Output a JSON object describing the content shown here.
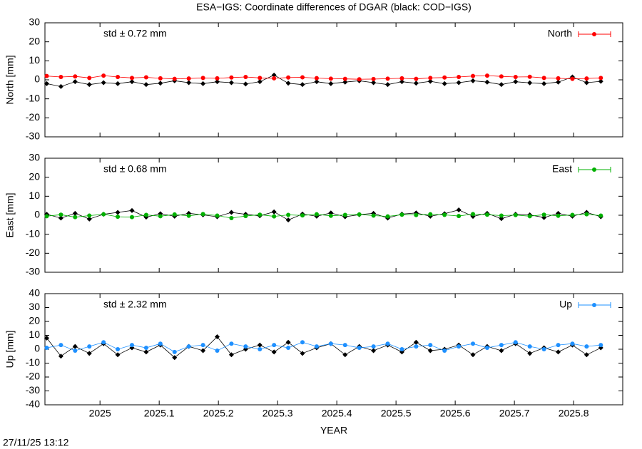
{
  "title": "ESA−IGS: Coordinate differences of DGAR (black: COD−IGS)",
  "timestamp": "27/11/25 13:12",
  "chart_data": [
    {
      "type": "line",
      "ylabel": "North [mm]",
      "annotation": "std ± 0.72 mm",
      "legend": "upper right",
      "xlim": [
        2024.907,
        2025.883
      ],
      "xticks": [
        2025,
        2025.1,
        2025.2,
        2025.3,
        2025.4,
        2025.5,
        2025.6,
        2025.7,
        2025.8
      ],
      "ylim": [
        -30,
        30
      ],
      "yticks": [
        -30,
        -20,
        -10,
        0,
        10,
        20,
        30
      ],
      "x": [
        2024.91,
        2024.934,
        2024.958,
        2024.982,
        2025.006,
        2025.03,
        2025.054,
        2025.078,
        2025.102,
        2025.126,
        2025.15,
        2025.174,
        2025.198,
        2025.222,
        2025.246,
        2025.27,
        2025.294,
        2025.318,
        2025.342,
        2025.366,
        2025.39,
        2025.414,
        2025.438,
        2025.462,
        2025.486,
        2025.51,
        2025.534,
        2025.558,
        2025.582,
        2025.606,
        2025.63,
        2025.654,
        2025.678,
        2025.702,
        2025.726,
        2025.75,
        2025.774,
        2025.798,
        2025.822,
        2025.846
      ],
      "series": [
        {
          "color": "#000000",
          "values": [
            -2,
            -3.5,
            -1,
            -2.5,
            -1.5,
            -2,
            -1,
            -2.5,
            -1.8,
            -0.5,
            -1.5,
            -2,
            -1,
            -1.5,
            -2.2,
            -1,
            2.5,
            -1.8,
            -2.5,
            -1,
            -2,
            -1.2,
            -0.5,
            -1.5,
            -2.5,
            -1,
            -1.8,
            -0.8,
            -2,
            -1.5,
            -0.5,
            -1.2,
            -2.5,
            -1,
            -1.6,
            -2,
            -1.2,
            1.5,
            -1.5,
            -0.8
          ]
        },
        {
          "name": "North",
          "color": "#ff0000",
          "values": [
            2,
            1.5,
            1.8,
            1,
            2.2,
            1.5,
            1,
            1.3,
            0.8,
            0.5,
            0.7,
            1,
            0.8,
            1.2,
            1.5,
            1,
            0.8,
            1.2,
            1.3,
            0.9,
            0.6,
            0.5,
            0.3,
            0.4,
            0.6,
            0.8,
            0.5,
            1,
            1.2,
            1.5,
            2,
            2.2,
            1.8,
            1.5,
            1.6,
            1,
            0.8,
            0.5,
            0.7,
            1
          ]
        }
      ]
    },
    {
      "type": "line",
      "ylabel": "East [mm]",
      "annotation": "std ± 0.68 mm",
      "legend": "upper right",
      "xlim": [
        2024.907,
        2025.883
      ],
      "xticks": [
        2025,
        2025.1,
        2025.2,
        2025.3,
        2025.4,
        2025.5,
        2025.6,
        2025.7,
        2025.8
      ],
      "ylim": [
        -30,
        30
      ],
      "yticks": [
        -30,
        -20,
        -10,
        0,
        10,
        20,
        30
      ],
      "x": [
        2024.91,
        2024.934,
        2024.958,
        2024.982,
        2025.006,
        2025.03,
        2025.054,
        2025.078,
        2025.102,
        2025.126,
        2025.15,
        2025.174,
        2025.198,
        2025.222,
        2025.246,
        2025.27,
        2025.294,
        2025.318,
        2025.342,
        2025.366,
        2025.39,
        2025.414,
        2025.438,
        2025.462,
        2025.486,
        2025.51,
        2025.534,
        2025.558,
        2025.582,
        2025.606,
        2025.63,
        2025.654,
        2025.678,
        2025.702,
        2025.726,
        2025.75,
        2025.774,
        2025.798,
        2025.822,
        2025.846
      ],
      "series": [
        {
          "color": "#000000",
          "values": [
            0.5,
            -1.5,
            1,
            -2,
            0.5,
            1.5,
            2.5,
            -1,
            0.8,
            -0.5,
            1,
            0.2,
            -0.8,
            1.5,
            0.5,
            -0.3,
            1.8,
            -2.5,
            0.6,
            -0.5,
            1.2,
            -0.8,
            0.3,
            1,
            -1.5,
            0.6,
            1.2,
            -0.5,
            0.8,
            2.8,
            -0.6,
            1,
            -1.8,
            0.5,
            0.2,
            -1.2,
            1,
            -0.5,
            1.5,
            -0.8
          ]
        },
        {
          "name": "East",
          "color": "#00b000",
          "values": [
            -0.5,
            0.3,
            -1,
            -0.2,
            0.5,
            -0.8,
            -1,
            0.2,
            -0.5,
            0.4,
            -0.3,
            0.6,
            -0.2,
            -1.5,
            -0.4,
            0.3,
            -0.6,
            0.2,
            -0.1,
            0.5,
            -0.3,
            0.2,
            0.4,
            -0.2,
            -0.6,
            0.3,
            0.1,
            0.5,
            0.2,
            -0.4,
            0.6,
            0.3,
            -0.2,
            0.1,
            -0.5,
            0.3,
            -0.3,
            0.2,
            0.5,
            -0.2
          ]
        }
      ]
    },
    {
      "type": "line",
      "ylabel": "Up [mm]",
      "xlabel": "YEAR",
      "annotation": "std ± 2.32 mm",
      "legend": "upper right",
      "xlim": [
        2024.907,
        2025.883
      ],
      "xticks": [
        2025,
        2025.1,
        2025.2,
        2025.3,
        2025.4,
        2025.5,
        2025.6,
        2025.7,
        2025.8
      ],
      "ylim": [
        -40,
        40
      ],
      "yticks": [
        -40,
        -30,
        -20,
        -10,
        0,
        10,
        20,
        30,
        40
      ],
      "x": [
        2024.91,
        2024.934,
        2024.958,
        2024.982,
        2025.006,
        2025.03,
        2025.054,
        2025.078,
        2025.102,
        2025.126,
        2025.15,
        2025.174,
        2025.198,
        2025.222,
        2025.246,
        2025.27,
        2025.294,
        2025.318,
        2025.342,
        2025.366,
        2025.39,
        2025.414,
        2025.438,
        2025.462,
        2025.486,
        2025.51,
        2025.534,
        2025.558,
        2025.582,
        2025.606,
        2025.63,
        2025.654,
        2025.678,
        2025.702,
        2025.726,
        2025.75,
        2025.774,
        2025.798,
        2025.822,
        2025.846
      ],
      "series": [
        {
          "color": "#000000",
          "values": [
            8,
            -5,
            2,
            -3,
            4,
            -4,
            1,
            -2,
            3,
            -6,
            2,
            -1,
            9,
            -4,
            0,
            3,
            -2,
            5,
            -3,
            1,
            4,
            -4,
            2,
            -1,
            3,
            -2,
            5,
            -1,
            0,
            3,
            -4,
            2,
            -1,
            4,
            -3,
            1,
            -2,
            3,
            -4,
            1
          ]
        },
        {
          "name": "Up",
          "color": "#1e90ff",
          "values": [
            1,
            3,
            -1,
            2,
            5,
            0,
            3,
            1,
            4,
            -2,
            2,
            3,
            -1,
            4,
            2,
            0,
            3,
            1,
            5,
            2,
            4,
            3,
            1,
            2,
            4,
            0,
            2,
            3,
            -1,
            2,
            4,
            1,
            3,
            5,
            2,
            0,
            3,
            4,
            2,
            3
          ]
        }
      ]
    }
  ]
}
